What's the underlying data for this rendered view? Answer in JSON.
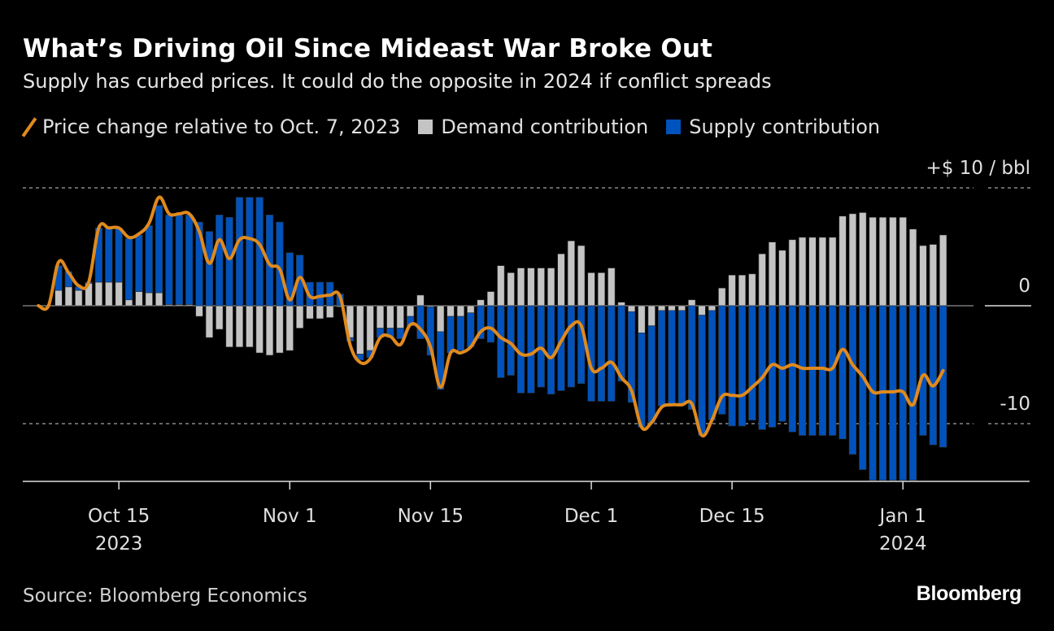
{
  "title": "What’s Driving Oil Since Mideast War Broke Out",
  "subtitle": "Supply has curbed prices. It could do the opposite in 2024 if conflict spreads",
  "source": "Source: Bloomberg Economics",
  "logo": "Bloomberg",
  "colors": {
    "background": "#000000",
    "price": "#e08a1e",
    "demand": "#c4c4c4",
    "supply": "#0052bd"
  },
  "chart_data": {
    "type": "bar+line",
    "stacked": true,
    "legend_position": "top-left",
    "series": [
      {
        "name": "Price change relative to Oct. 7, 2023",
        "type": "line",
        "key": "price"
      },
      {
        "name": "Demand contribution",
        "type": "bar",
        "key": "demand"
      },
      {
        "name": "Supply contribution",
        "type": "bar",
        "key": "supply"
      }
    ],
    "y_unit_label": "+$ 10 / bbl",
    "y_ticks": [
      {
        "value": 10,
        "label": "+$ 10 / bbl"
      },
      {
        "value": 0,
        "label": "0"
      },
      {
        "value": -10,
        "label": "-10"
      }
    ],
    "ylim": [
      -15,
      10.5
    ],
    "grid": "dotted at ±10",
    "x_ticks": [
      {
        "date": "2023-10-15",
        "label": "Oct 15",
        "year": "2023"
      },
      {
        "date": "2023-11-01",
        "label": "Nov 1",
        "year": ""
      },
      {
        "date": "2023-11-15",
        "label": "Nov 15",
        "year": ""
      },
      {
        "date": "2023-12-01",
        "label": "Dec 1",
        "year": ""
      },
      {
        "date": "2023-12-15",
        "label": "Dec 15",
        "year": ""
      },
      {
        "date": "2024-01-01",
        "label": "Jan 1",
        "year": "2024"
      }
    ],
    "xlim": [
      "2023-10-04",
      "2024-01-11"
    ],
    "dates": [
      "2023-10-07",
      "2023-10-08",
      "2023-10-09",
      "2023-10-10",
      "2023-10-11",
      "2023-10-12",
      "2023-10-13",
      "2023-10-14",
      "2023-10-15",
      "2023-10-16",
      "2023-10-17",
      "2023-10-18",
      "2023-10-19",
      "2023-10-20",
      "2023-10-21",
      "2023-10-22",
      "2023-10-23",
      "2023-10-24",
      "2023-10-25",
      "2023-10-26",
      "2023-10-27",
      "2023-10-28",
      "2023-10-29",
      "2023-10-30",
      "2023-10-31",
      "2023-11-01",
      "2023-11-02",
      "2023-11-03",
      "2023-11-04",
      "2023-11-05",
      "2023-11-06",
      "2023-11-07",
      "2023-11-08",
      "2023-11-09",
      "2023-11-10",
      "2023-11-11",
      "2023-11-12",
      "2023-11-13",
      "2023-11-14",
      "2023-11-15",
      "2023-11-16",
      "2023-11-17",
      "2023-11-18",
      "2023-11-19",
      "2023-11-20",
      "2023-11-21",
      "2023-11-22",
      "2023-11-23",
      "2023-11-24",
      "2023-11-25",
      "2023-11-26",
      "2023-11-27",
      "2023-11-28",
      "2023-11-29",
      "2023-11-30",
      "2023-12-01",
      "2023-12-02",
      "2023-12-03",
      "2023-12-04",
      "2023-12-05",
      "2023-12-06",
      "2023-12-07",
      "2023-12-08",
      "2023-12-09",
      "2023-12-10",
      "2023-12-11",
      "2023-12-12",
      "2023-12-13",
      "2023-12-14",
      "2023-12-15",
      "2023-12-16",
      "2023-12-17",
      "2023-12-18",
      "2023-12-19",
      "2023-12-20",
      "2023-12-21",
      "2023-12-22",
      "2023-12-23",
      "2023-12-24",
      "2023-12-25",
      "2023-12-26",
      "2023-12-27",
      "2023-12-28",
      "2023-12-29",
      "2023-12-30",
      "2023-12-31",
      "2024-01-01",
      "2024-01-02",
      "2024-01-03",
      "2024-01-04",
      "2024-01-05"
    ],
    "price": [
      0,
      0,
      3.7,
      2.8,
      1.7,
      2.0,
      6.6,
      6.6,
      6.6,
      5.8,
      6.1,
      7.0,
      9.2,
      7.8,
      7.8,
      7.8,
      6.3,
      3.6,
      5.6,
      4.0,
      5.6,
      5.7,
      5.2,
      3.5,
      3.1,
      0.5,
      2.4,
      0.8,
      0.8,
      0.9,
      0.8,
      -3.3,
      -4.8,
      -4.5,
      -2.7,
      -2.6,
      -3.3,
      -1.6,
      -2.0,
      -3.5,
      -6.9,
      -4.0,
      -4.0,
      -3.5,
      -2.2,
      -1.9,
      -2.7,
      -3.2,
      -4.1,
      -4.1,
      -3.6,
      -4.4,
      -3.0,
      -1.7,
      -1.7,
      -5.3,
      -5.3,
      -4.8,
      -6.1,
      -7.2,
      -10.3,
      -9.9,
      -8.6,
      -8.4,
      -8.4,
      -8.3,
      -11.0,
      -9.7,
      -7.7,
      -7.6,
      -7.6,
      -6.9,
      -6.1,
      -5.0,
      -5.3,
      -5.0,
      -5.3,
      -5.3,
      -5.3,
      -5.3,
      -3.7,
      -5.0,
      -6.0,
      -7.3,
      -7.3,
      -7.3,
      -7.3,
      -8.4,
      -5.9,
      -6.8,
      -5.5
    ],
    "demand": [
      null,
      null,
      1.3,
      1.6,
      1.3,
      1.9,
      2.0,
      2.0,
      2.0,
      0.5,
      1.2,
      1.1,
      1.1,
      0.1,
      0.1,
      0.1,
      -0.9,
      -2.7,
      -2.0,
      -3.5,
      -3.5,
      -3.5,
      -4.0,
      -4.2,
      -4.0,
      -3.8,
      -1.9,
      -1.1,
      -1.1,
      -1.0,
      -0.1,
      -2.7,
      -4.1,
      -3.8,
      -1.9,
      -1.9,
      -1.9,
      -0.9,
      0.9,
      -0.1,
      -2.2,
      -0.9,
      -0.9,
      -0.6,
      0.5,
      1.2,
      3.4,
      2.8,
      3.2,
      3.2,
      3.2,
      3.2,
      4.4,
      5.5,
      5.1,
      2.8,
      2.8,
      3.2,
      0.3,
      -0.5,
      -2.3,
      -1.7,
      -0.4,
      -0.4,
      -0.4,
      0.5,
      -0.8,
      -0.4,
      1.5,
      2.6,
      2.6,
      2.7,
      4.4,
      5.4,
      4.7,
      5.6,
      5.8,
      5.8,
      5.8,
      5.8,
      7.6,
      7.8,
      7.9,
      7.5,
      7.5,
      7.5,
      7.5,
      6.5,
      5.1,
      5.2,
      6.0
    ],
    "supply": [
      null,
      null,
      2.1,
      1.3,
      0.3,
      0.1,
      4.6,
      4.6,
      4.6,
      5.2,
      4.8,
      5.7,
      7.4,
      7.6,
      7.6,
      7.6,
      7.1,
      6.3,
      7.7,
      7.5,
      9.2,
      9.2,
      9.2,
      7.7,
      7.1,
      4.5,
      4.3,
      2.0,
      2.0,
      2.0,
      1.0,
      -0.3,
      -0.5,
      -0.6,
      -0.8,
      -0.8,
      -0.9,
      -0.8,
      -2.8,
      -4.1,
      -4.9,
      -3.1,
      -2.9,
      -2.9,
      -2.8,
      -3.1,
      -6.1,
      -5.9,
      -7.4,
      -7.4,
      -6.9,
      -7.5,
      -7.2,
      -6.9,
      -6.6,
      -8.1,
      -8.1,
      -8.1,
      -6.4,
      -7.7,
      -8.0,
      -8.2,
      -8.1,
      -8.0,
      -8.0,
      -8.8,
      -10.2,
      -9.3,
      -9.2,
      -10.2,
      -10.2,
      -9.7,
      -10.5,
      -10.3,
      -9.8,
      -10.7,
      -11.0,
      -11.0,
      -11.0,
      -11.0,
      -11.3,
      -12.6,
      -13.9,
      -14.8,
      -14.8,
      -14.8,
      -14.8,
      -14.8,
      -11.0,
      -11.8,
      -12.0
    ]
  }
}
